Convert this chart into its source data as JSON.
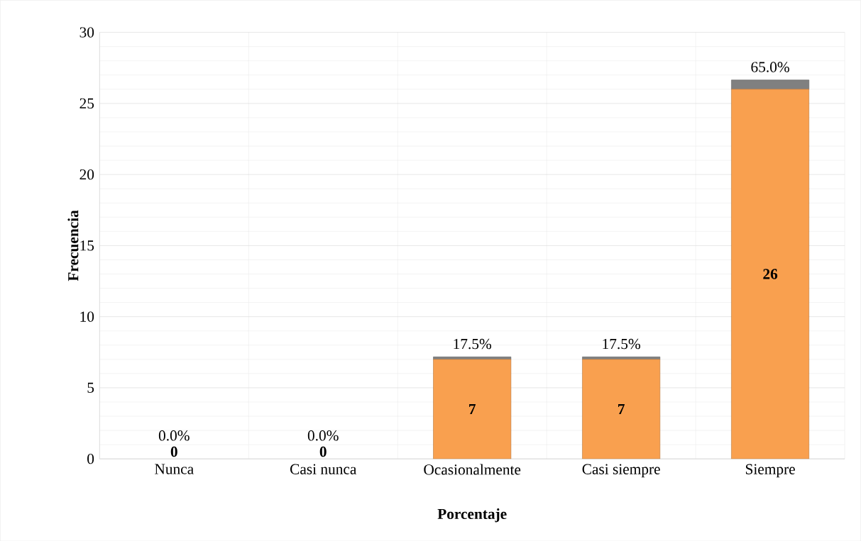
{
  "chart_data": {
    "type": "bar",
    "stacked": true,
    "xlabel": "Porcentaje",
    "ylabel": "Frecuencia",
    "categories": [
      "Nunca",
      "Casi nunca",
      "Ocasionalmente",
      "Casi siempre",
      "Siempre"
    ],
    "series": [
      {
        "color": "#f9a04f",
        "values": [
          0,
          0,
          7,
          7,
          26
        ],
        "value_labels": [
          "0",
          "0",
          "7",
          "7",
          "26"
        ]
      },
      {
        "color": "#808080",
        "values": [
          0,
          0,
          0.175,
          0.175,
          0.65
        ],
        "value_labels": [
          "0.0%",
          "0.0%",
          "17.5%",
          "17.5%",
          "65.0%"
        ]
      }
    ],
    "ylim": [
      0,
      30
    ],
    "yticks": [
      0,
      5,
      10,
      15,
      20,
      25,
      30
    ],
    "grid": true
  }
}
